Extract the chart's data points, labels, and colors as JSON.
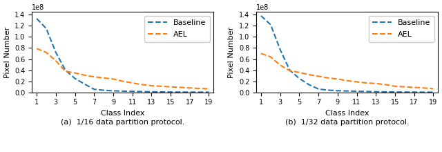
{
  "class_index": [
    1,
    2,
    3,
    4,
    5,
    6,
    7,
    8,
    9,
    10,
    11,
    12,
    13,
    14,
    15,
    16,
    17,
    18,
    19
  ],
  "left": {
    "baseline": [
      133000000.0,
      115000000.0,
      72000000.0,
      40000000.0,
      25000000.0,
      15000000.0,
      5500000.0,
      3800000.0,
      2800000.0,
      2200000.0,
      1800000.0,
      1400000.0,
      1000000.0,
      800000.0,
      600000.0,
      500000.0,
      400000.0,
      300000.0,
      300000.0
    ],
    "ael": [
      79000000.0,
      72000000.0,
      57000000.0,
      38000000.0,
      35000000.0,
      31000000.0,
      28000000.0,
      26000000.0,
      24000000.0,
      20000000.0,
      17000000.0,
      14000000.0,
      12000000.0,
      11000000.0,
      10000000.0,
      9000000.0,
      8000000.0,
      7000000.0,
      6500000.0
    ],
    "title": "(a)  1/16 data partition protocol.",
    "ylabel": "Pixel Number",
    "xlabel": "Class Index",
    "ylim": [
      0,
      145000000.0
    ]
  },
  "right": {
    "baseline": [
      138000000.0,
      122000000.0,
      77000000.0,
      40000000.0,
      25000000.0,
      14000000.0,
      6000000.0,
      4000000.0,
      3000000.0,
      2500000.0,
      2000000.0,
      1600000.0,
      1200000.0,
      900000.0,
      700000.0,
      500000.0,
      400000.0,
      300000.0,
      300000.0
    ],
    "ael": [
      70000000.0,
      64000000.0,
      49000000.0,
      39000000.0,
      36000000.0,
      32000000.0,
      29000000.0,
      26000000.0,
      24000000.0,
      21000000.0,
      19000000.0,
      17000000.0,
      16000000.0,
      14000000.0,
      11000000.0,
      10000000.0,
      9000000.0,
      8000000.0,
      6500000.0
    ],
    "title": "(b)  1/32 data partition protocol.",
    "ylabel": "Pixel Number",
    "xlabel": "Class Index",
    "ylim": [
      0,
      145000000.0
    ]
  },
  "baseline_color": "#1f77b4",
  "ael_color": "#ff7f0e",
  "xticks": [
    1,
    3,
    5,
    7,
    9,
    11,
    13,
    15,
    17,
    19
  ],
  "yticks": [
    0.0,
    20000000.0,
    40000000.0,
    60000000.0,
    80000000.0,
    100000000.0,
    120000000.0,
    140000000.0
  ],
  "ytick_labels": [
    "0.0",
    "0.2",
    "0.4",
    "0.6",
    "0.8",
    "1.0",
    "1.2",
    "1.4"
  ],
  "legend_baseline": "Baseline",
  "legend_ael": "AEL",
  "linewidth": 1.5,
  "legend_fontsize": 8,
  "tick_fontsize": 7,
  "label_fontsize": 8,
  "title_fontsize": 8
}
